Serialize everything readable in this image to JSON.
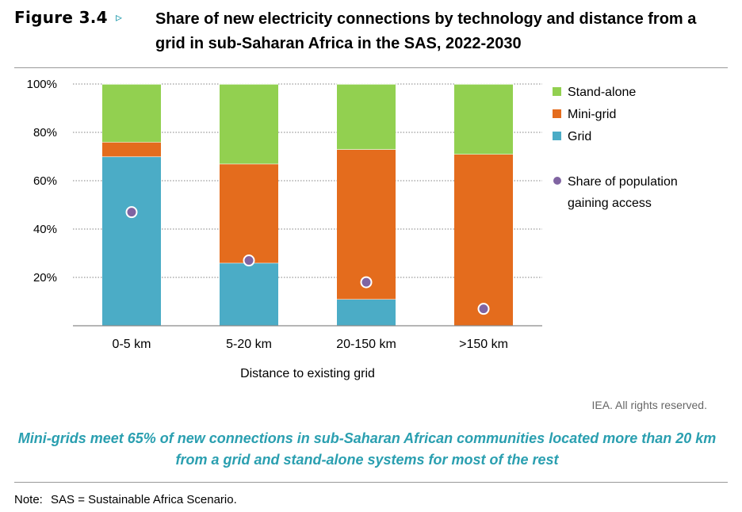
{
  "figure": {
    "label": "Figure 3.4",
    "arrow": "▹",
    "title": "Share of new electricity connections by technology and distance from a grid in sub-Saharan Africa in the SAS, 2022-2030"
  },
  "chart_data": {
    "type": "bar",
    "stacked": true,
    "categories": [
      "0-5 km",
      "5-20 km",
      "20-150 km",
      ">150 km"
    ],
    "series": [
      {
        "name": "Grid",
        "values": [
          70,
          26,
          11,
          0
        ],
        "color": "#4bacc6"
      },
      {
        "name": "Mini-grid",
        "values": [
          6,
          41,
          62,
          71
        ],
        "color": "#e46c1d"
      },
      {
        "name": "Stand-alone",
        "values": [
          24,
          33,
          27,
          29
        ],
        "color": "#92d050"
      }
    ],
    "markers": {
      "name": "Share of population gaining access",
      "values": [
        47,
        27,
        18,
        7
      ],
      "color": "#8064a2"
    },
    "xlabel": "Distance to existing grid",
    "ylabel": "",
    "ylim": [
      0,
      100
    ],
    "yticks": [
      "20%",
      "40%",
      "60%",
      "80%",
      "100%"
    ],
    "ytick_values": [
      20,
      40,
      60,
      80,
      100
    ],
    "grid": true,
    "legend": {
      "placement": "right",
      "entries": [
        "Stand-alone",
        "Mini-grid",
        "Grid"
      ],
      "marker_entry_line1": "Share of population",
      "marker_entry_line2": "gaining access"
    }
  },
  "copyright": "IEA. All rights reserved.",
  "caption": "Mini-grids meet 65% of new connections in sub-Saharan African communities located more than 20 km from a grid and stand-alone systems for most of the rest",
  "note": {
    "label": "Note:",
    "text": "SAS = Sustainable Africa Scenario."
  }
}
